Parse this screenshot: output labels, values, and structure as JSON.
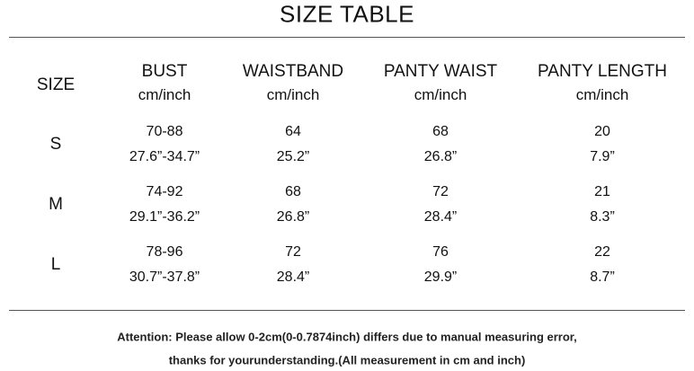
{
  "header": {
    "title": "SIZE TABLE"
  },
  "table": {
    "size_header": "SIZE",
    "columns": [
      {
        "name": "BUST",
        "unit": "cm/inch"
      },
      {
        "name": "WAISTBAND",
        "unit": "cm/inch"
      },
      {
        "name": "PANTY WAIST",
        "unit": "cm/inch"
      },
      {
        "name": "PANTY LENGTH",
        "unit": "cm/inch"
      }
    ],
    "rows": [
      {
        "size": "S",
        "cells": [
          [
            "70-88",
            "27.6”-34.7”"
          ],
          [
            "64",
            "25.2”"
          ],
          [
            "68",
            "26.8”"
          ],
          [
            "20",
            "7.9”"
          ]
        ]
      },
      {
        "size": "M",
        "cells": [
          [
            "74-92",
            "29.1”-36.2”"
          ],
          [
            "68",
            "26.8”"
          ],
          [
            "72",
            "28.4”"
          ],
          [
            "21",
            "8.3”"
          ]
        ]
      },
      {
        "size": "L",
        "cells": [
          [
            "78-96",
            "30.7”-37.8”"
          ],
          [
            "72",
            "28.4”"
          ],
          [
            "76",
            "29.9”"
          ],
          [
            "22",
            "8.7”"
          ]
        ]
      }
    ]
  },
  "notes": [
    "Attention: Please allow 0-2cm(0-0.7874inch) differs due to manual measuring error,",
    "thanks for yourunderstanding.(All measurement in cm and inch)"
  ]
}
